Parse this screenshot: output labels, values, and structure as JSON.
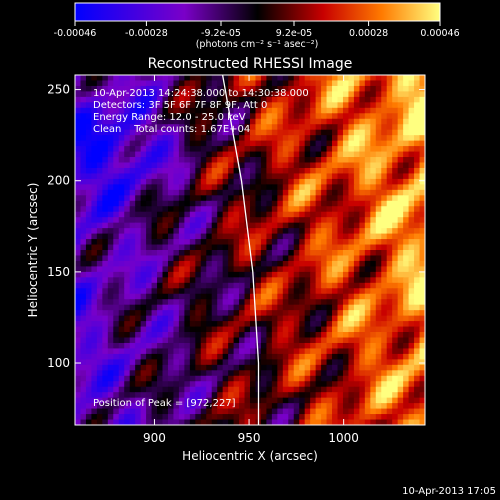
{
  "chart_data": {
    "type": "heatmap",
    "title": "Reconstructed RHESSI Image",
    "xlabel": "Heliocentric X (arcsec)",
    "ylabel": "Heliocentric Y (arcsec)",
    "xlim": [
      858,
      1043
    ],
    "ylim": [
      66,
      258
    ],
    "x_ticks": [
      900,
      950,
      1000
    ],
    "y_ticks": [
      100,
      150,
      200,
      250
    ],
    "colorbar": {
      "range": [
        -0.00046,
        0.00046
      ],
      "tick_values": [
        -0.00046,
        -0.00028,
        -9.2e-05,
        9.2e-05,
        0.00028,
        0.00046
      ],
      "tick_labels": [
        "-0.00046",
        "-0.00028",
        "-9.2e-05",
        "9.2e-05",
        "0.00028",
        "0.00046"
      ],
      "unit_label": "(photons cm⁻² s⁻¹ asec⁻²)",
      "colors": [
        "#0000ff",
        "#7a00c8",
        "#000000",
        "#c80000",
        "#ff7a00",
        "#ffff80"
      ]
    },
    "annotations": [
      "10-Apr-2013 14:24:38.000 to 14:30:38.000",
      "Detectors: 3F 5F 6F 7F 8F 9F, Att 0",
      "Energy Range: 12.0 - 25.0 keV",
      "Clean    Total counts: 1.67E+04"
    ],
    "peak_label": "Position of Peak = [972,227]",
    "peak": [
      972,
      227
    ],
    "limb_line": [
      [
        936,
        258
      ],
      [
        946,
        200
      ],
      [
        952,
        150
      ],
      [
        955,
        100
      ],
      [
        955,
        66
      ]
    ],
    "grid": false
  },
  "footer": {
    "timestamp": "10-Apr-2013 17:05"
  }
}
